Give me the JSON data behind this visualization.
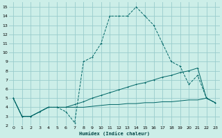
{
  "xlabel": "Humidex (Indice chaleur)",
  "bg_color": "#cceee8",
  "grid_color": "#99cccc",
  "line_color": "#006666",
  "xlim": [
    -0.5,
    23.5
  ],
  "ylim": [
    2,
    15.5
  ],
  "xticks": [
    0,
    1,
    2,
    3,
    4,
    5,
    6,
    7,
    8,
    9,
    10,
    11,
    12,
    13,
    14,
    15,
    16,
    17,
    18,
    19,
    20,
    21,
    22,
    23
  ],
  "yticks": [
    2,
    3,
    4,
    5,
    6,
    7,
    8,
    9,
    10,
    11,
    12,
    13,
    14,
    15
  ],
  "curve_x": [
    0,
    1,
    2,
    3,
    4,
    5,
    6,
    7,
    8,
    9,
    10,
    11,
    12,
    13,
    14,
    15,
    16,
    17,
    18,
    19,
    20,
    21,
    22,
    23
  ],
  "curve_y": [
    5.0,
    3.0,
    3.0,
    3.5,
    4.0,
    4.0,
    3.5,
    2.3,
    9.0,
    9.5,
    11.0,
    14.0,
    14.0,
    14.0,
    15.0,
    14.0,
    13.0,
    11.0,
    9.0,
    8.5,
    6.5,
    7.5,
    5.0,
    4.5
  ],
  "diag_x": [
    0,
    1,
    2,
    3,
    4,
    5,
    6,
    7,
    8,
    9,
    10,
    11,
    12,
    13,
    14,
    15,
    16,
    17,
    18,
    19,
    20,
    21,
    22,
    23
  ],
  "diag_y": [
    5.0,
    3.0,
    3.0,
    3.5,
    4.0,
    4.0,
    4.0,
    4.3,
    4.6,
    5.0,
    5.3,
    5.6,
    5.9,
    6.2,
    6.5,
    6.7,
    7.0,
    7.3,
    7.5,
    7.8,
    8.0,
    8.3,
    5.0,
    4.5
  ],
  "flat_x": [
    0,
    1,
    2,
    3,
    4,
    5,
    6,
    7,
    8,
    9,
    10,
    11,
    12,
    13,
    14,
    15,
    16,
    17,
    18,
    19,
    20,
    21,
    22,
    23
  ],
  "flat_y": [
    5.0,
    3.0,
    3.0,
    3.5,
    4.0,
    4.0,
    4.0,
    4.0,
    4.0,
    4.1,
    4.2,
    4.3,
    4.3,
    4.4,
    4.4,
    4.5,
    4.5,
    4.6,
    4.6,
    4.7,
    4.8,
    4.8,
    5.0,
    4.5
  ]
}
